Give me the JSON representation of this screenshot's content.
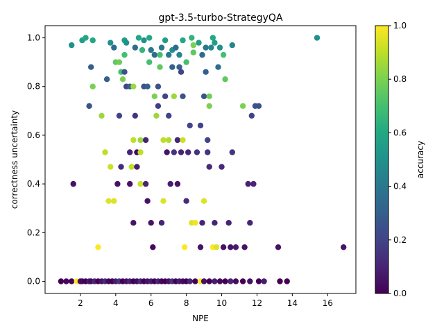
{
  "chart_data": {
    "type": "scatter",
    "title": "gpt-3.5-turbo-StrategyQA",
    "xlabel": "NPE",
    "ylabel": "correctness uncertainty",
    "xlim": [
      0,
      17.6
    ],
    "ylim": [
      -0.05,
      1.05
    ],
    "xticks": [
      "2",
      "4",
      "6",
      "8",
      "10",
      "12",
      "14",
      "16"
    ],
    "yticks": [
      "0.0",
      "0.2",
      "0.4",
      "0.6",
      "0.8",
      "1.0"
    ],
    "grid": false,
    "colorbar": {
      "label": "accuracy",
      "colormap": "viridis",
      "range": [
        0,
        1
      ],
      "ticks": [
        "0.0",
        "0.2",
        "0.4",
        "0.6",
        "0.8",
        "1.0"
      ]
    },
    "points": [
      [
        0.9,
        0.0,
        0.0
      ],
      [
        1.2,
        0.0,
        0.02
      ],
      [
        1.5,
        0.0,
        0.0
      ],
      [
        1.8,
        0.0,
        1.0
      ],
      [
        2.0,
        0.0,
        0.05
      ],
      [
        2.1,
        0.0,
        0.02
      ],
      [
        2.3,
        0.0,
        0.0
      ],
      [
        2.5,
        0.0,
        0.08
      ],
      [
        2.6,
        0.0,
        0.03
      ],
      [
        2.8,
        0.0,
        0.1
      ],
      [
        3.0,
        0.0,
        0.0
      ],
      [
        3.2,
        0.0,
        0.05
      ],
      [
        3.4,
        0.0,
        0.12
      ],
      [
        3.6,
        0.0,
        0.02
      ],
      [
        3.8,
        0.0,
        0.0
      ],
      [
        4.0,
        0.0,
        0.08
      ],
      [
        4.2,
        0.0,
        0.15
      ],
      [
        4.4,
        0.0,
        0.0
      ],
      [
        4.6,
        0.0,
        0.05
      ],
      [
        4.8,
        0.0,
        0.1
      ],
      [
        5.0,
        0.0,
        0.0
      ],
      [
        5.2,
        0.0,
        0.03
      ],
      [
        5.4,
        0.0,
        0.12
      ],
      [
        5.6,
        0.0,
        0.0
      ],
      [
        5.8,
        0.0,
        0.05
      ],
      [
        6.0,
        0.0,
        0.08
      ],
      [
        6.2,
        0.0,
        0.0
      ],
      [
        6.4,
        0.0,
        0.1
      ],
      [
        6.6,
        0.0,
        0.02
      ],
      [
        6.8,
        0.0,
        0.0
      ],
      [
        7.0,
        0.0,
        0.05
      ],
      [
        7.2,
        0.0,
        0.15
      ],
      [
        7.4,
        0.0,
        0.0
      ],
      [
        7.6,
        0.0,
        0.08
      ],
      [
        7.8,
        0.0,
        0.03
      ],
      [
        8.0,
        0.0,
        0.0
      ],
      [
        8.2,
        0.0,
        0.1
      ],
      [
        8.5,
        0.0,
        0.0
      ],
      [
        8.8,
        0.0,
        1.0
      ],
      [
        9.0,
        0.0,
        0.05
      ],
      [
        9.3,
        0.0,
        0.0
      ],
      [
        9.6,
        0.0,
        0.08
      ],
      [
        9.9,
        0.0,
        0.02
      ],
      [
        10.2,
        0.0,
        0.0
      ],
      [
        10.5,
        0.0,
        0.1
      ],
      [
        10.8,
        0.0,
        0.03
      ],
      [
        11.2,
        0.0,
        0.0
      ],
      [
        11.6,
        0.0,
        0.05
      ],
      [
        12.1,
        0.0,
        0.0
      ],
      [
        12.4,
        0.0,
        0.08
      ],
      [
        13.3,
        0.0,
        0.0
      ],
      [
        13.7,
        0.0,
        0.0
      ],
      [
        1.6,
        0.4,
        0.05
      ],
      [
        1.5,
        0.97,
        0.5
      ],
      [
        2.1,
        0.99,
        0.55
      ],
      [
        2.3,
        1.0,
        0.6
      ],
      [
        2.5,
        0.72,
        0.25
      ],
      [
        2.6,
        0.88,
        0.3
      ],
      [
        2.7,
        0.99,
        0.6
      ],
      [
        2.7,
        0.8,
        0.8
      ],
      [
        3.0,
        0.14,
        1.0
      ],
      [
        3.2,
        0.68,
        0.85
      ],
      [
        3.4,
        0.53,
        0.9
      ],
      [
        3.5,
        0.83,
        0.3
      ],
      [
        3.6,
        0.33,
        0.95
      ],
      [
        3.7,
        0.47,
        0.92
      ],
      [
        3.7,
        0.98,
        0.5
      ],
      [
        3.9,
        0.96,
        0.35
      ],
      [
        3.9,
        0.33,
        0.95
      ],
      [
        4.0,
        0.9,
        0.75
      ],
      [
        4.1,
        0.4,
        0.05
      ],
      [
        4.2,
        0.68,
        0.2
      ],
      [
        4.2,
        0.9,
        0.78
      ],
      [
        4.3,
        0.86,
        0.7
      ],
      [
        4.3,
        0.47,
        0.12
      ],
      [
        4.4,
        0.83,
        0.8
      ],
      [
        4.5,
        0.99,
        0.55
      ],
      [
        4.5,
        0.86,
        0.25
      ],
      [
        4.5,
        0.93,
        0.7
      ],
      [
        4.6,
        0.8,
        0.2
      ],
      [
        4.6,
        0.98,
        0.5
      ],
      [
        4.8,
        0.8,
        0.3
      ],
      [
        4.8,
        0.53,
        0.1
      ],
      [
        4.8,
        0.4,
        0.05
      ],
      [
        4.9,
        0.47,
        0.9
      ],
      [
        5.0,
        0.58,
        0.9
      ],
      [
        5.0,
        0.8,
        0.85
      ],
      [
        5.0,
        0.24,
        0.05
      ],
      [
        5.1,
        0.68,
        0.15
      ],
      [
        5.1,
        0.96,
        0.35
      ],
      [
        5.2,
        0.53,
        0.02
      ],
      [
        5.2,
        0.47,
        0.08
      ],
      [
        5.3,
        1.0,
        0.6
      ],
      [
        5.4,
        0.58,
        0.85
      ],
      [
        5.4,
        0.4,
        0.92
      ],
      [
        5.4,
        0.53,
        0.9
      ],
      [
        5.5,
        0.95,
        0.65
      ],
      [
        5.6,
        0.99,
        0.5
      ],
      [
        5.6,
        0.8,
        0.25
      ],
      [
        5.7,
        0.58,
        0.1
      ],
      [
        5.7,
        0.4,
        0.1
      ],
      [
        5.8,
        0.33,
        0.05
      ],
      [
        5.8,
        0.8,
        0.3
      ],
      [
        5.9,
        0.9,
        0.7
      ],
      [
        5.9,
        1.0,
        0.6
      ],
      [
        6.0,
        0.95,
        0.4
      ],
      [
        6.0,
        0.24,
        0.05
      ],
      [
        6.1,
        0.14,
        0.02
      ],
      [
        6.2,
        0.93,
        0.35
      ],
      [
        6.2,
        0.76,
        0.8
      ],
      [
        6.3,
        0.68,
        0.85
      ],
      [
        6.4,
        0.8,
        0.25
      ],
      [
        6.4,
        0.72,
        0.18
      ],
      [
        6.5,
        0.93,
        0.7
      ],
      [
        6.5,
        0.88,
        0.75
      ],
      [
        6.6,
        0.96,
        0.4
      ],
      [
        6.6,
        0.24,
        0.1
      ],
      [
        6.7,
        0.33,
        0.95
      ],
      [
        6.7,
        0.58,
        0.9
      ],
      [
        6.8,
        0.99,
        0.55
      ],
      [
        6.8,
        0.76,
        0.2
      ],
      [
        6.9,
        0.53,
        0.05
      ],
      [
        7.0,
        0.68,
        0.2
      ],
      [
        7.0,
        0.58,
        0.88
      ],
      [
        7.0,
        0.93,
        0.4
      ],
      [
        7.1,
        0.4,
        0.08
      ],
      [
        7.2,
        0.88,
        0.3
      ],
      [
        7.2,
        0.95,
        0.5
      ],
      [
        7.3,
        0.76,
        0.85
      ],
      [
        7.3,
        0.53,
        0.15
      ],
      [
        7.4,
        0.96,
        0.35
      ],
      [
        7.5,
        0.58,
        0.1
      ],
      [
        7.5,
        0.4,
        0.05
      ],
      [
        7.6,
        0.88,
        0.3
      ],
      [
        7.6,
        0.93,
        0.45
      ],
      [
        7.7,
        0.86,
        0.2
      ],
      [
        7.7,
        0.53,
        0.1
      ],
      [
        7.8,
        0.99,
        0.6
      ],
      [
        7.8,
        0.76,
        0.25
      ],
      [
        7.8,
        0.58,
        0.92
      ],
      [
        7.9,
        0.14,
        1.0
      ],
      [
        8.0,
        0.33,
        0.12
      ],
      [
        8.0,
        0.9,
        0.7
      ],
      [
        8.1,
        0.53,
        0.1
      ],
      [
        8.2,
        0.64,
        0.2
      ],
      [
        8.3,
        1.0,
        0.65
      ],
      [
        8.3,
        0.24,
        0.95
      ],
      [
        8.4,
        0.94,
        0.75
      ],
      [
        8.4,
        0.97,
        0.8
      ],
      [
        8.5,
        0.24,
        0.98
      ],
      [
        8.6,
        0.53,
        0.15
      ],
      [
        8.7,
        0.98,
        0.55
      ],
      [
        8.8,
        0.64,
        0.2
      ],
      [
        8.8,
        0.14,
        0.05
      ],
      [
        8.9,
        0.93,
        0.35
      ],
      [
        8.9,
        0.24,
        0.1
      ],
      [
        9.0,
        0.76,
        0.25
      ],
      [
        9.0,
        0.33,
        0.95
      ],
      [
        9.1,
        0.96,
        0.4
      ],
      [
        9.1,
        0.86,
        0.3
      ],
      [
        9.2,
        0.53,
        0.15
      ],
      [
        9.2,
        0.58,
        0.2
      ],
      [
        9.3,
        0.72,
        0.8
      ],
      [
        9.3,
        0.47,
        0.12
      ],
      [
        9.3,
        0.76,
        0.78
      ],
      [
        9.4,
        0.96,
        0.45
      ],
      [
        9.5,
        1.0,
        0.6
      ],
      [
        9.5,
        0.14,
        1.0
      ],
      [
        9.6,
        0.98,
        0.55
      ],
      [
        9.6,
        0.24,
        0.1
      ],
      [
        9.7,
        0.14,
        0.95
      ],
      [
        9.8,
        0.88,
        0.35
      ],
      [
        9.9,
        0.96,
        0.5
      ],
      [
        10.0,
        0.47,
        0.12
      ],
      [
        10.1,
        0.93,
        0.7
      ],
      [
        10.1,
        0.14,
        0.05
      ],
      [
        10.2,
        0.83,
        0.75
      ],
      [
        10.4,
        0.24,
        0.1
      ],
      [
        10.5,
        0.14,
        0.05
      ],
      [
        10.6,
        0.97,
        0.45
      ],
      [
        10.6,
        0.53,
        0.15
      ],
      [
        10.8,
        0.14,
        0.08
      ],
      [
        11.2,
        0.72,
        0.8
      ],
      [
        11.3,
        0.14,
        0.05
      ],
      [
        11.5,
        0.4,
        0.1
      ],
      [
        11.6,
        0.24,
        0.1
      ],
      [
        11.7,
        0.68,
        0.2
      ],
      [
        11.8,
        0.4,
        0.1
      ],
      [
        11.9,
        0.72,
        0.25
      ],
      [
        12.1,
        0.72,
        0.25
      ],
      [
        13.2,
        0.14,
        0.05
      ],
      [
        15.4,
        1.0,
        0.5
      ],
      [
        16.9,
        0.14,
        0.05
      ]
    ]
  }
}
